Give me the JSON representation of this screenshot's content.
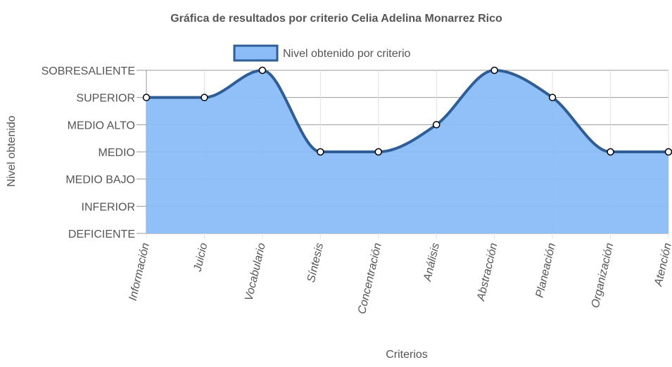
{
  "chart_data": {
    "type": "area",
    "title": "Gráfica de resultados por criterio Celia Adelina Monarrez Rico",
    "xlabel": "Criterios",
    "ylabel": "Nivel obtenido",
    "categories": [
      "Información",
      "Juicio",
      "Vocabulario",
      "Síntesis",
      "Concentración",
      "Análisis",
      "Abstracción",
      "Planeación",
      "Organización",
      "Atención"
    ],
    "y_levels": [
      "DEFICIENTE",
      "INFERIOR",
      "MEDIO BAJO",
      "MEDIO",
      "MEDIO ALTO",
      "SUPERIOR",
      "SOBRESALIENTE"
    ],
    "ylim": [
      0,
      6
    ],
    "grid": true,
    "legend_position": "top",
    "series": [
      {
        "name": "Nivel obtenido por criterio",
        "values": [
          5,
          5,
          6,
          3,
          3,
          4,
          6,
          5,
          3,
          3
        ],
        "fill_color": "#8bbcf7",
        "line_color": "#2f5d95"
      }
    ]
  }
}
